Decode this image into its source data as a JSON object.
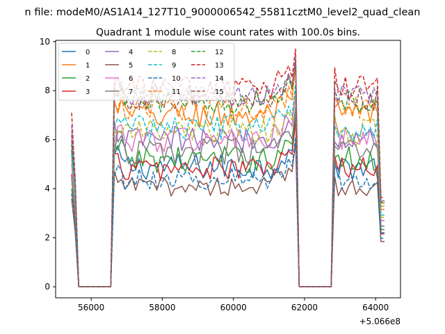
{
  "chart_data": {
    "type": "line",
    "suptitle": "n file: modeM0/AS1A14_127T10_9000006542_55811cztM0_level2_quad_clean",
    "title": "Quadrant 1 module wise count rates with 100.0s bins.",
    "xlabel": "",
    "ylabel": "",
    "x_offset_label": "+5.066e8",
    "xlim": [
      55000,
      64700
    ],
    "ylim": [
      -0.45,
      10.05
    ],
    "xticks": [
      56000,
      58000,
      60000,
      62000,
      64000
    ],
    "xtick_labels": [
      "56000",
      "58000",
      "60000",
      "62000",
      "64000"
    ],
    "yticks": [
      0,
      2,
      4,
      6,
      8,
      10
    ],
    "ytick_labels": [
      "0",
      "2",
      "4",
      "6",
      "8",
      "10"
    ],
    "legend_position": "upper-left",
    "legend_columns": 4,
    "x_start": 55450,
    "x_step": 100,
    "segments": [
      {
        "gap_start": 55650,
        "gap_end": 56550
      },
      {
        "gap_start": 61850,
        "gap_end": 62750
      }
    ],
    "series": [
      {
        "name": "0",
        "color": "#1f77b4",
        "style": "solid",
        "level": 4.9,
        "spread": 0.55,
        "spike": 5.6
      },
      {
        "name": "1",
        "color": "#ff7f0e",
        "style": "solid",
        "level": 7.0,
        "spread": 0.6,
        "spike": 4.2
      },
      {
        "name": "2",
        "color": "#2ca02c",
        "style": "solid",
        "level": 5.2,
        "spread": 0.55,
        "spike": 4.0
      },
      {
        "name": "3",
        "color": "#d62728",
        "style": "solid",
        "level": 4.8,
        "spread": 0.5,
        "spike": 4.6
      },
      {
        "name": "4",
        "color": "#9467bd",
        "style": "solid",
        "level": 6.0,
        "spread": 0.55,
        "spike": 6.0
      },
      {
        "name": "5",
        "color": "#8c564b",
        "style": "solid",
        "level": 4.1,
        "spread": 0.4,
        "spike": 3.6
      },
      {
        "name": "6",
        "color": "#e377c2",
        "style": "solid",
        "level": 6.0,
        "spread": 0.55,
        "spike": 5.0
      },
      {
        "name": "7",
        "color": "#7f7f7f",
        "style": "solid",
        "level": 5.5,
        "spread": 0.55,
        "spike": 4.4
      },
      {
        "name": "8",
        "color": "#bcbd22",
        "style": "dashed",
        "level": 6.3,
        "spread": 0.55,
        "spike": 5.2
      },
      {
        "name": "9",
        "color": "#17becf",
        "style": "dashed",
        "level": 6.5,
        "spread": 0.55,
        "spike": 5.4
      },
      {
        "name": "10",
        "color": "#1f77b4",
        "style": "dashed",
        "level": 4.4,
        "spread": 0.45,
        "spike": 3.8
      },
      {
        "name": "11",
        "color": "#ff7f0e",
        "style": "dashed",
        "level": 7.3,
        "spread": 0.5,
        "spike": 6.4
      },
      {
        "name": "12",
        "color": "#2ca02c",
        "style": "dashed",
        "level": 7.6,
        "spread": 0.5,
        "spike": 5.8
      },
      {
        "name": "13",
        "color": "#d62728",
        "style": "dashed",
        "level": 8.1,
        "spread": 0.5,
        "spike": 7.1
      },
      {
        "name": "14",
        "color": "#9467bd",
        "style": "dashed",
        "level": 7.8,
        "spread": 0.45,
        "spike": 6.6
      },
      {
        "name": "15",
        "color": "#8c564b",
        "style": "dashed",
        "level": 7.7,
        "spread": 0.5,
        "spike": 6.2
      }
    ]
  }
}
